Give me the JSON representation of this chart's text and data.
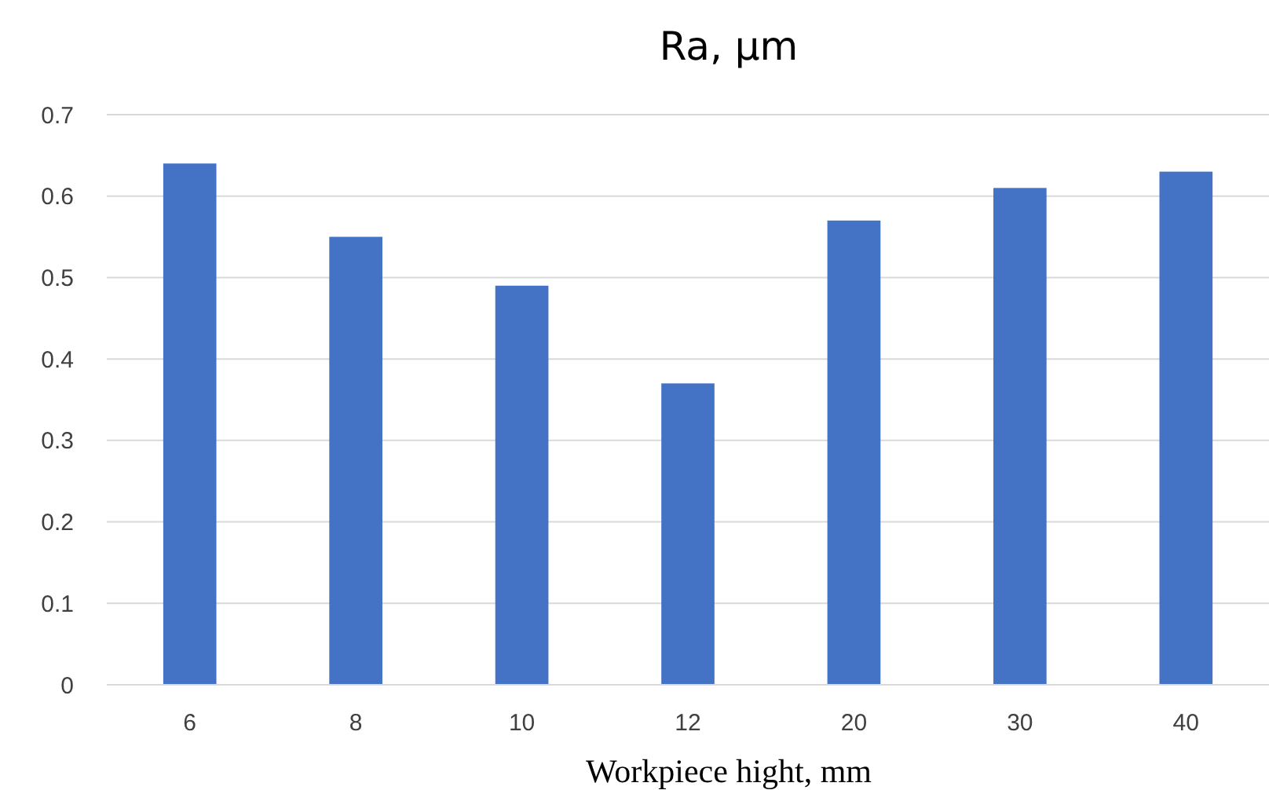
{
  "chart_data": {
    "type": "bar",
    "title": "Ra, µm",
    "xlabel": "Workpiece hight, mm",
    "categories": [
      "6",
      "8",
      "10",
      "12",
      "20",
      "30",
      "40"
    ],
    "values": [
      0.64,
      0.55,
      0.49,
      0.37,
      0.57,
      0.61,
      0.63
    ],
    "color": "#4472c4",
    "ylim": [
      0,
      0.7
    ],
    "yticks": [
      0,
      0.1,
      0.2,
      0.3,
      0.4,
      0.5,
      0.6,
      0.7
    ],
    "grid": "y"
  }
}
